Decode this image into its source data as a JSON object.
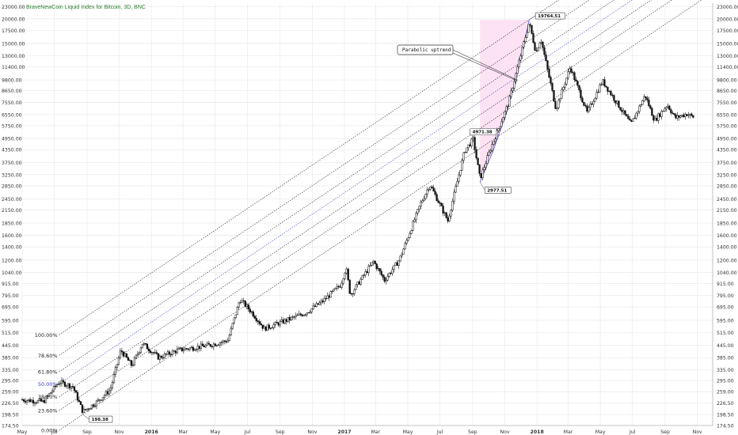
{
  "chart_data": {
    "type": "candlestick",
    "title": "BraveNewCoin Liquid Index for Bitcoin, 3D, BNC",
    "scale": "log",
    "ylim": [
      174.5,
      24000
    ],
    "xlim": [
      "2015-05-01",
      "2018-11-30"
    ],
    "y_ticks": [
      "174.50",
      "198.50",
      "226.50",
      "259.00",
      "295.00",
      "335.00",
      "385.00",
      "445.00",
      "515.00",
      "595.00",
      "695.00",
      "795.00",
      "915.00",
      "1040.00",
      "1200.00",
      "1400.00",
      "1600.00",
      "1850.00",
      "2150.00",
      "2450.00",
      "2850.00",
      "3250.00",
      "3750.00",
      "4350.00",
      "4950.00",
      "5750.00",
      "6550.00",
      "7550.00",
      "8650.00",
      "9800.00",
      "11400.00",
      "13000.00",
      "15000.00",
      "17500.00",
      "20000.00",
      "23000.00"
    ],
    "x_ticks": [
      {
        "label": "May",
        "date": "2015-05-01"
      },
      {
        "label": "Jul",
        "date": "2015-07-01"
      },
      {
        "label": "Sep",
        "date": "2015-09-01"
      },
      {
        "label": "Nov",
        "date": "2015-11-01"
      },
      {
        "label": "2016",
        "date": "2016-01-01"
      },
      {
        "label": "Mar",
        "date": "2016-03-01"
      },
      {
        "label": "May",
        "date": "2016-05-01"
      },
      {
        "label": "Jul",
        "date": "2016-07-01"
      },
      {
        "label": "Sep",
        "date": "2016-09-01"
      },
      {
        "label": "Nov",
        "date": "2016-11-01"
      },
      {
        "label": "2017",
        "date": "2017-01-01"
      },
      {
        "label": "Mar",
        "date": "2017-03-01"
      },
      {
        "label": "May",
        "date": "2017-05-01"
      },
      {
        "label": "Jul",
        "date": "2017-07-01"
      },
      {
        "label": "Sep",
        "date": "2017-09-01"
      },
      {
        "label": "Nov",
        "date": "2017-11-01"
      },
      {
        "label": "2018",
        "date": "2018-01-01"
      },
      {
        "label": "Mar",
        "date": "2018-03-01"
      },
      {
        "label": "May",
        "date": "2018-05-01"
      },
      {
        "label": "Jul",
        "date": "2018-07-01"
      },
      {
        "label": "Sep",
        "date": "2018-09-01"
      },
      {
        "label": "Nov",
        "date": "2018-11-01"
      }
    ],
    "price_path": [
      [
        "2015-05-01",
        236
      ],
      [
        "2015-06-10",
        230
      ],
      [
        "2015-07-10",
        290
      ],
      [
        "2015-08-05",
        275
      ],
      [
        "2015-08-24",
        205
      ],
      [
        "2015-09-20",
        230
      ],
      [
        "2015-10-15",
        265
      ],
      [
        "2015-11-04",
        420
      ],
      [
        "2015-11-25",
        350
      ],
      [
        "2015-12-15",
        455
      ],
      [
        "2016-01-15",
        385
      ],
      [
        "2016-02-20",
        420
      ],
      [
        "2016-04-20",
        445
      ],
      [
        "2016-05-25",
        470
      ],
      [
        "2016-06-17",
        760
      ],
      [
        "2016-07-10",
        650
      ],
      [
        "2016-08-02",
        540
      ],
      [
        "2016-09-20",
        605
      ],
      [
        "2016-10-20",
        650
      ],
      [
        "2016-11-20",
        740
      ],
      [
        "2016-12-25",
        900
      ],
      [
        "2017-01-04",
        1100
      ],
      [
        "2017-01-12",
        800
      ],
      [
        "2017-02-25",
        1180
      ],
      [
        "2017-03-18",
        950
      ],
      [
        "2017-04-15",
        1200
      ],
      [
        "2017-05-25",
        2300
      ],
      [
        "2017-06-12",
        2900
      ],
      [
        "2017-07-16",
        1900
      ],
      [
        "2017-08-17",
        4300
      ],
      [
        "2017-09-02",
        4900
      ],
      [
        "2017-09-15",
        3100
      ],
      [
        "2017-10-05",
        4400
      ],
      [
        "2017-11-08",
        7500
      ],
      [
        "2017-12-17",
        19200
      ],
      [
        "2017-12-30",
        13500
      ],
      [
        "2018-01-08",
        16000
      ],
      [
        "2018-02-06",
        7000
      ],
      [
        "2018-03-05",
        11400
      ],
      [
        "2018-04-06",
        6700
      ],
      [
        "2018-05-05",
        9700
      ],
      [
        "2018-06-28",
        5850
      ],
      [
        "2018-07-25",
        8200
      ],
      [
        "2018-08-12",
        6100
      ],
      [
        "2018-09-05",
        7350
      ],
      [
        "2018-09-20",
        6300
      ],
      [
        "2018-10-12",
        6600
      ],
      [
        "2018-10-25",
        6350
      ]
    ],
    "channel": {
      "anchor_low": {
        "date": "2015-08-24",
        "value": 198.38
      },
      "anchor_high": {
        "date": "2017-12-17",
        "value": 19764.51
      },
      "levels": [
        {
          "label": "100.00%",
          "factor": 3.05,
          "color": "#222222"
        },
        {
          "label": "78.60%",
          "factor": 2.4,
          "color": "#222222"
        },
        {
          "label": "61.80%",
          "factor": 1.98,
          "color": "#222222"
        },
        {
          "label": "50.00%",
          "factor": 1.72,
          "color": "#3b3bc4"
        },
        {
          "label": "38.20%",
          "factor": 1.48,
          "color": "#222222"
        },
        {
          "label": "23.60%",
          "factor": 1.26,
          "color": "#222222"
        },
        {
          "label": "0.00%",
          "factor": 1.0,
          "color": "#222222"
        }
      ]
    },
    "annotations": [
      {
        "text": "19764.51",
        "date": "2017-12-17",
        "value": 19764.51
      },
      {
        "text": "4971.38",
        "date": "2017-09-02",
        "value": 4971.38
      },
      {
        "text": "2977.51",
        "date": "2017-09-15",
        "value": 2977.51
      },
      {
        "text": "198.38",
        "date": "2015-08-24",
        "value": 198.38
      }
    ],
    "callout": {
      "text": "Parabolic uptrend",
      "target_date": "2017-11-25",
      "target_value": 9800
    },
    "parabola": [
      [
        "2017-09-15",
        2977.51
      ],
      [
        "2017-10-10",
        4300
      ],
      [
        "2017-11-05",
        6800
      ],
      [
        "2017-11-25",
        10500
      ],
      [
        "2017-12-08",
        15000
      ],
      [
        "2017-12-17",
        19764.51
      ]
    ],
    "colors": {
      "candle": "#111111",
      "grid": "#e6e6e6",
      "highlight": "#fde2f4",
      "arc": "#7b6bd3",
      "axis_text": "#333333"
    }
  }
}
